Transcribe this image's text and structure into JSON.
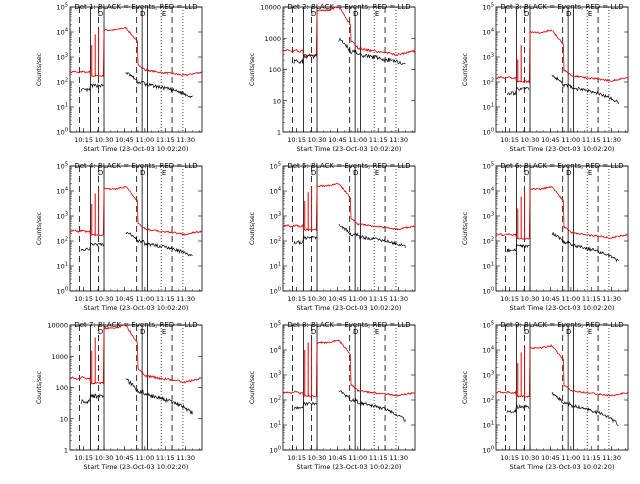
{
  "chart_data": [
    {
      "type": "line",
      "title": "Det 1: BLACK = Events, RED = LLD",
      "xlabel": "Start Time (23-Oct-03 10:02:20)",
      "ylabel": "Counts/sec",
      "yscale": "log",
      "ylim": [
        1,
        100000
      ],
      "ytick_labels": [
        "10^0",
        "10^1",
        "10^2",
        "10^3",
        "10^4",
        "10^5"
      ],
      "xtick_labels": [
        "10:15",
        "10:30",
        "10:45",
        "11:00",
        "11:15",
        "11:30"
      ],
      "markers_text": [
        "D",
        "D",
        "E"
      ],
      "red_series": {
        "name": "LLD",
        "base": 250,
        "peak": 15000,
        "spikes": [
          3000,
          8000,
          12000
        ]
      },
      "black_series": {
        "name": "Events",
        "base": 80,
        "end": 25
      }
    },
    {
      "type": "line",
      "title": "Det 2: BLACK = Events, RED = LLD",
      "xlabel": "Start Time (23-Oct-03 10:02:20)",
      "ylabel": "Counts/sec",
      "yscale": "log",
      "ylim": [
        1,
        10000
      ],
      "ytick_labels": [
        "1",
        "10",
        "100",
        "1000",
        "10000"
      ],
      "xtick_labels": [
        "10:15",
        "10:30",
        "10:45",
        "11:00",
        "11:15",
        "11:30"
      ],
      "markers_text": [
        "D",
        "D",
        "E"
      ],
      "red_series": {
        "name": "LLD",
        "base": 400,
        "peak": 10000,
        "spikes": []
      },
      "black_series": {
        "name": "Events",
        "base": 300,
        "end": 150
      }
    },
    {
      "type": "line",
      "title": "Det 3: BLACK = Events, RED = LLD",
      "xlabel": "Start Time (23-Oct-03 10:02:20)",
      "ylabel": "Counts/sec",
      "yscale": "log",
      "ylim": [
        1,
        100000
      ],
      "ytick_labels": [
        "10^0",
        "10^1",
        "10^2",
        "10^3",
        "10^4",
        "10^5"
      ],
      "xtick_labels": [
        "10:15",
        "10:30",
        "10:45",
        "11:00",
        "11:15",
        "11:30"
      ],
      "markers_text": [
        "D",
        "D",
        "E"
      ],
      "red_series": {
        "name": "LLD",
        "base": 150,
        "peak": 12000,
        "spikes": [
          800,
          3000
        ]
      },
      "black_series": {
        "name": "Events",
        "base": 60,
        "end": 15
      }
    },
    {
      "type": "line",
      "title": "Det 4: BLACK = Events, RED = LLD",
      "xlabel": "Start Time (23-Oct-03 10:02:20)",
      "ylabel": "Counts/sec",
      "yscale": "log",
      "ylim": [
        1,
        100000
      ],
      "ytick_labels": [
        "10^0",
        "10^1",
        "10^2",
        "10^3",
        "10^4",
        "10^5"
      ],
      "xtick_labels": [
        "10:15",
        "10:30",
        "10:45",
        "11:00",
        "11:15",
        "11:30"
      ],
      "markers_text": [
        "D",
        "D",
        "E"
      ],
      "red_series": {
        "name": "LLD",
        "base": 250,
        "peak": 15000,
        "spikes": [
          3000,
          8000,
          12000
        ]
      },
      "black_series": {
        "name": "Events",
        "base": 80,
        "end": 25
      }
    },
    {
      "type": "line",
      "title": "Det 5: BLACK = Events, RED = LLD",
      "xlabel": "Start Time (23-Oct-03 10:02:20)",
      "ylabel": "Counts/sec",
      "yscale": "log",
      "ylim": [
        1,
        100000
      ],
      "ytick_labels": [
        "10^0",
        "10^1",
        "10^2",
        "10^3",
        "10^4",
        "10^5"
      ],
      "xtick_labels": [
        "10:15",
        "10:30",
        "10:45",
        "11:00",
        "11:15",
        "11:30"
      ],
      "markers_text": [
        "D",
        "D",
        "E"
      ],
      "red_series": {
        "name": "LLD",
        "base": 400,
        "peak": 20000,
        "spikes": [
          4000,
          9000,
          14000
        ]
      },
      "black_series": {
        "name": "Events",
        "base": 150,
        "end": 60
      }
    },
    {
      "type": "line",
      "title": "Det 6: BLACK = Events, RED = LLD",
      "xlabel": "Start Time (23-Oct-03 10:02:20)",
      "ylabel": "Counts/sec",
      "yscale": "log",
      "ylim": [
        1,
        100000
      ],
      "ytick_labels": [
        "10^0",
        "10^1",
        "10^2",
        "10^3",
        "10^4",
        "10^5"
      ],
      "xtick_labels": [
        "10:15",
        "10:30",
        "10:45",
        "11:00",
        "11:15",
        "11:30"
      ],
      "markers_text": [
        "D",
        "D",
        "E"
      ],
      "red_series": {
        "name": "LLD",
        "base": 180,
        "peak": 15000,
        "spikes": [
          2000,
          6000,
          10000
        ]
      },
      "black_series": {
        "name": "Events",
        "base": 70,
        "end": 15
      }
    },
    {
      "type": "line",
      "title": "Det 7: BLACK = Events, RED = LLD",
      "xlabel": "Start Time (23-Oct-03 10:02:20)",
      "ylabel": "Counts/sec",
      "yscale": "log",
      "ylim": [
        1,
        10000
      ],
      "ytick_labels": [
        "1",
        "10",
        "100",
        "1000",
        "10000"
      ],
      "xtick_labels": [
        "10:15",
        "10:30",
        "10:45",
        "11:00",
        "11:15",
        "11:30"
      ],
      "markers_text": [
        "D",
        "D",
        "E"
      ],
      "red_series": {
        "name": "LLD",
        "base": 200,
        "peak": 10000,
        "spikes": [
          1500,
          4000
        ]
      },
      "black_series": {
        "name": "Events",
        "base": 60,
        "end": 15
      }
    },
    {
      "type": "line",
      "title": "Det 8: BLACK = Events, RED = LLD",
      "xlabel": "Start Time (23-Oct-03 10:02:20)",
      "ylabel": "Counts/sec",
      "yscale": "log",
      "ylim": [
        1,
        100000
      ],
      "ytick_labels": [
        "10^0",
        "10^1",
        "10^2",
        "10^3",
        "10^4",
        "10^5"
      ],
      "xtick_labels": [
        "10:15",
        "10:30",
        "10:45",
        "11:00",
        "11:15",
        "11:30"
      ],
      "markers_text": [
        "D",
        "D",
        "E"
      ],
      "red_series": {
        "name": "LLD",
        "base": 200,
        "peak": 25000,
        "spikes": [
          10000,
          20000,
          25000
        ]
      },
      "black_series": {
        "name": "Events",
        "base": 80,
        "end": 15
      }
    },
    {
      "type": "line",
      "title": "Det 9: BLACK = Events, RED = LLD",
      "xlabel": "Start Time (23-Oct-03 10:02:20)",
      "ylabel": "Counts/sec",
      "yscale": "log",
      "ylim": [
        1,
        100000
      ],
      "ytick_labels": [
        "10^0",
        "10^1",
        "10^2",
        "10^3",
        "10^4",
        "10^5"
      ],
      "xtick_labels": [
        "10:15",
        "10:30",
        "10:45",
        "11:00",
        "11:15",
        "11:30"
      ],
      "markers_text": [
        "D",
        "D",
        "E"
      ],
      "red_series": {
        "name": "LLD",
        "base": 200,
        "peak": 15000,
        "spikes": [
          3000,
          8000,
          12000
        ]
      },
      "black_series": {
        "name": "Events",
        "base": 60,
        "end": 10
      }
    }
  ],
  "colors": {
    "red_series": "#e00000",
    "black_series": "#000000"
  }
}
